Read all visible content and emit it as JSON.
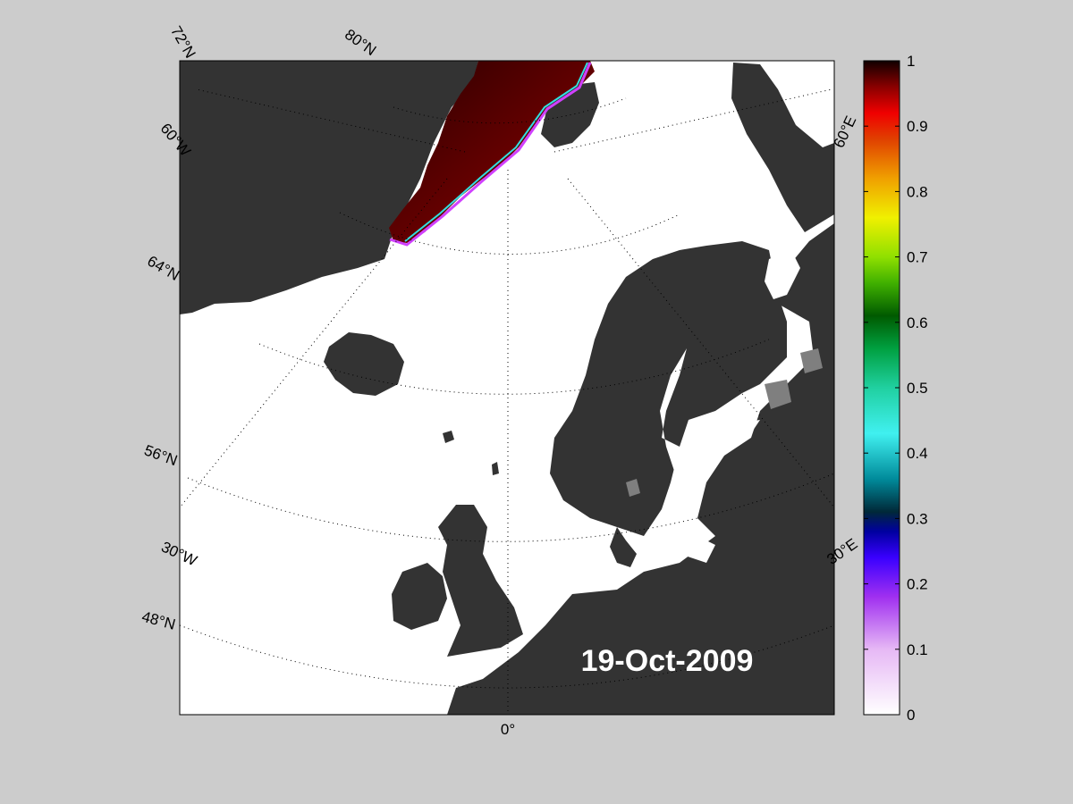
{
  "map": {
    "date": "19-Oct-2009",
    "background_color": "#cccccc",
    "ocean_color": "#ffffff",
    "land_color": "#333333",
    "lake_color": "#7f7f7f",
    "gridline_style": "dotted",
    "graticule_labels": {
      "lat_72": "72°N",
      "lat_80": "80°N",
      "lat_64": "64°N",
      "lat_56": "56°N",
      "lat_48": "48°N",
      "lon_60w": "60°W",
      "lon_30w": "30°W",
      "lon_0": "0°",
      "lon_30e": "30°E",
      "lon_60e": "60°E"
    }
  },
  "colorbar": {
    "ticks": [
      "0",
      "0.1",
      "0.2",
      "0.3",
      "0.4",
      "0.5",
      "0.6",
      "0.7",
      "0.8",
      "0.9",
      "1"
    ],
    "range": [
      0,
      1
    ]
  }
}
